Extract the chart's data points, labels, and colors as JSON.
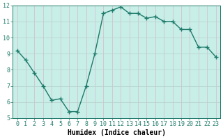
{
  "xlabel": "Humidex (Indice chaleur)",
  "x": [
    0,
    1,
    2,
    3,
    4,
    5,
    6,
    7,
    8,
    9,
    10,
    11,
    12,
    13,
    14,
    15,
    16,
    17,
    18,
    19,
    20,
    21,
    22,
    23
  ],
  "y": [
    9.2,
    8.6,
    7.8,
    7.0,
    6.1,
    6.2,
    5.4,
    5.4,
    7.0,
    9.0,
    11.5,
    11.7,
    11.9,
    11.5,
    11.5,
    11.2,
    11.3,
    11.0,
    11.0,
    10.5,
    10.5,
    9.4,
    9.4,
    8.8
  ],
  "line_color": "#1e7a6a",
  "marker": "+",
  "marker_size": 4,
  "bg_color": "#c8eee8",
  "grid_color_major": "#b8d8d2",
  "grid_color_minor": "#d8f0ec",
  "ylim": [
    5,
    12
  ],
  "xlim": [
    -0.5,
    23.5
  ],
  "yticks": [
    5,
    6,
    7,
    8,
    9,
    10,
    11,
    12
  ],
  "xticks": [
    0,
    1,
    2,
    3,
    4,
    5,
    6,
    7,
    8,
    9,
    10,
    11,
    12,
    13,
    14,
    15,
    16,
    17,
    18,
    19,
    20,
    21,
    22,
    23
  ],
  "tick_fontsize": 6,
  "label_fontsize": 7,
  "axis_color": "#1e7a6a",
  "bottom_bg": "#ffffff",
  "linewidth": 1.0
}
